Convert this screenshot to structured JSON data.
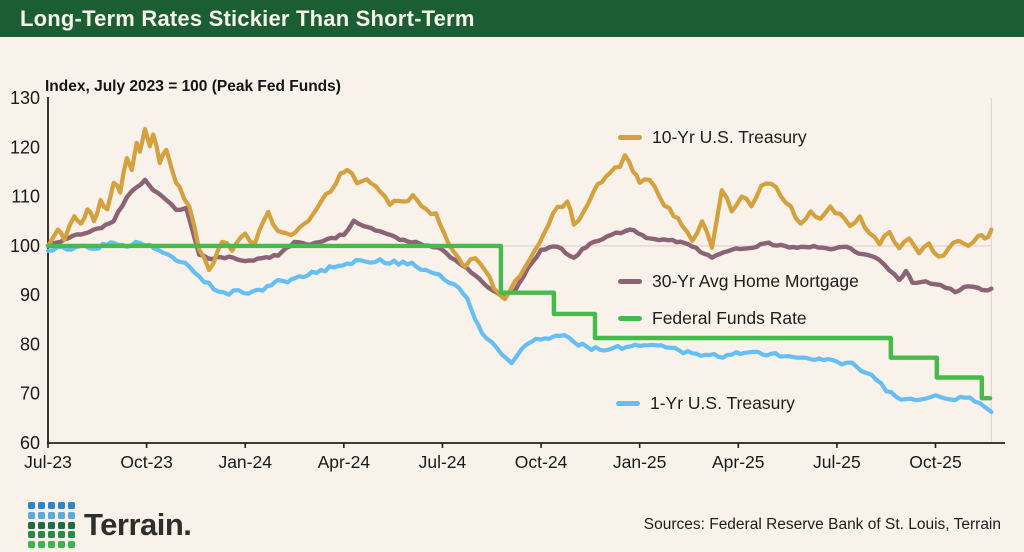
{
  "header": {
    "title": "Long-Term Rates Stickier Than Short-Term"
  },
  "chart_data": {
    "type": "line",
    "title": "Long-Term Rates Stickier Than Short-Term",
    "axis_title": "Index, July 2023 = 100 (Peak Fed Funds)",
    "x_unit": "months since Jul-2023",
    "xlim": [
      0,
      28.7
    ],
    "ylim": [
      60,
      130
    ],
    "grid_y": [
      100
    ],
    "y_ticks": [
      130,
      120,
      110,
      100,
      90,
      80,
      70,
      60
    ],
    "x_ticks": [
      {
        "m": 0,
        "label": "Jul-23"
      },
      {
        "m": 3,
        "label": "Oct-23"
      },
      {
        "m": 6,
        "label": "Jan-24"
      },
      {
        "m": 9,
        "label": "Apr-24"
      },
      {
        "m": 12,
        "label": "Jul-24"
      },
      {
        "m": 15,
        "label": "Oct-24"
      },
      {
        "m": 18,
        "label": "Jan-25"
      },
      {
        "m": 21,
        "label": "Apr-25"
      },
      {
        "m": 24,
        "label": "Jul-25"
      },
      {
        "m": 27,
        "label": "Oct-25"
      }
    ],
    "legend_position": "inline-annotations",
    "series": [
      {
        "name": "10-Yr U.S. Treasury",
        "color": "#D5A03E",
        "points": [
          [
            0,
            100
          ],
          [
            0.3,
            103.3
          ],
          [
            0.5,
            101.2
          ],
          [
            0.8,
            106
          ],
          [
            1,
            104.5
          ],
          [
            1.2,
            107.4
          ],
          [
            1.4,
            105
          ],
          [
            1.6,
            109.3
          ],
          [
            1.8,
            107.4
          ],
          [
            2,
            112.8
          ],
          [
            2.2,
            110.8
          ],
          [
            2.4,
            117.8
          ],
          [
            2.55,
            115.4
          ],
          [
            2.7,
            120.9
          ],
          [
            2.8,
            119.1
          ],
          [
            2.95,
            123.7
          ],
          [
            3.1,
            120.2
          ],
          [
            3.2,
            122.6
          ],
          [
            3.4,
            116.8
          ],
          [
            3.6,
            119.5
          ],
          [
            3.8,
            114.8
          ],
          [
            4,
            112
          ],
          [
            4.3,
            108
          ],
          [
            4.6,
            99.2
          ],
          [
            4.9,
            95.1
          ],
          [
            5.3,
            100.8
          ],
          [
            5.6,
            99
          ],
          [
            6,
            102.5
          ],
          [
            6.3,
            100.5
          ],
          [
            6.7,
            106.9
          ],
          [
            7,
            103
          ],
          [
            7.4,
            102.2
          ],
          [
            7.8,
            104.5
          ],
          [
            8.3,
            108.9
          ],
          [
            8.6,
            111
          ],
          [
            8.9,
            114.7
          ],
          [
            9.1,
            115.4
          ],
          [
            9.4,
            112.7
          ],
          [
            9.7,
            113.5
          ],
          [
            10.1,
            111
          ],
          [
            10.4,
            108.3
          ],
          [
            10.8,
            109
          ],
          [
            11.1,
            110.3
          ],
          [
            11.5,
            107.5
          ],
          [
            11.8,
            106.6
          ],
          [
            12.2,
            100.2
          ],
          [
            12.5,
            97.5
          ],
          [
            12.7,
            95.8
          ],
          [
            13,
            97.5
          ],
          [
            13.3,
            95
          ],
          [
            13.7,
            90.5
          ],
          [
            13.9,
            89.2
          ],
          [
            14.2,
            92.8
          ],
          [
            14.5,
            95.5
          ],
          [
            14.8,
            99
          ],
          [
            15.1,
            102.6
          ],
          [
            15.5,
            107.9
          ],
          [
            15.8,
            109
          ],
          [
            16,
            104.3
          ],
          [
            16.3,
            107
          ],
          [
            16.6,
            111
          ],
          [
            17.1,
            114.8
          ],
          [
            17.4,
            116
          ],
          [
            17.55,
            118.4
          ],
          [
            17.8,
            115
          ],
          [
            18,
            112.8
          ],
          [
            18.3,
            113.4
          ],
          [
            18.6,
            110
          ],
          [
            18.9,
            107.7
          ],
          [
            19.3,
            104
          ],
          [
            19.6,
            101
          ],
          [
            19.9,
            105
          ],
          [
            20.2,
            99.6
          ],
          [
            20.5,
            111.3
          ],
          [
            20.8,
            107
          ],
          [
            21.1,
            110
          ],
          [
            21.4,
            108
          ],
          [
            21.7,
            112.2
          ],
          [
            22,
            112.6
          ],
          [
            22.3,
            110
          ],
          [
            22.6,
            108
          ],
          [
            22.9,
            104.5
          ],
          [
            23.2,
            107
          ],
          [
            23.5,
            105.5
          ],
          [
            23.8,
            108
          ],
          [
            24.1,
            106.5
          ],
          [
            24.4,
            104
          ],
          [
            24.7,
            106
          ],
          [
            25,
            102.5
          ],
          [
            25.3,
            100.3
          ],
          [
            25.6,
            102.8
          ],
          [
            25.9,
            99.5
          ],
          [
            26.2,
            101.5
          ],
          [
            26.5,
            98.5
          ],
          [
            26.8,
            100.5
          ],
          [
            27.1,
            97.8
          ],
          [
            27.4,
            99.5
          ],
          [
            27.7,
            101
          ],
          [
            28,
            100
          ],
          [
            28.3,
            102
          ],
          [
            28.5,
            101.5
          ],
          [
            28.7,
            103.3
          ]
        ]
      },
      {
        "name": "30-Yr Avg Home Mortgage",
        "color": "#8B6375",
        "points": [
          [
            0,
            100
          ],
          [
            0.5,
            101.3
          ],
          [
            1,
            102.3
          ],
          [
            1.5,
            103.5
          ],
          [
            2,
            105
          ],
          [
            2.4,
            109.9
          ],
          [
            2.7,
            111.9
          ],
          [
            2.95,
            113.4
          ],
          [
            3.2,
            111.3
          ],
          [
            3.6,
            109.3
          ],
          [
            3.9,
            107.3
          ],
          [
            4.2,
            107.7
          ],
          [
            4.6,
            98.2
          ],
          [
            5,
            97.3
          ],
          [
            5.5,
            97.8
          ],
          [
            6,
            96.9
          ],
          [
            6.5,
            97.5
          ],
          [
            7,
            98
          ],
          [
            7.5,
            100.8
          ],
          [
            8,
            100.3
          ],
          [
            8.5,
            101.4
          ],
          [
            9,
            102.2
          ],
          [
            9.3,
            105.1
          ],
          [
            9.6,
            104
          ],
          [
            10.2,
            102.7
          ],
          [
            10.7,
            101.2
          ],
          [
            11.3,
            100.5
          ],
          [
            12,
            99.2
          ],
          [
            12.5,
            96.5
          ],
          [
            13,
            94
          ],
          [
            13.4,
            91.5
          ],
          [
            13.8,
            89.8
          ],
          [
            14.2,
            90.8
          ],
          [
            14.6,
            95.5
          ],
          [
            15,
            99.2
          ],
          [
            15.5,
            99.8
          ],
          [
            16,
            97.6
          ],
          [
            16.5,
            100.5
          ],
          [
            17,
            101.9
          ],
          [
            17.7,
            103.3
          ],
          [
            18.2,
            101.6
          ],
          [
            19,
            101.2
          ],
          [
            19.6,
            99.8
          ],
          [
            20.2,
            97.6
          ],
          [
            20.8,
            99.2
          ],
          [
            21.3,
            99.5
          ],
          [
            21.8,
            100.5
          ],
          [
            22.3,
            100.2
          ],
          [
            22.8,
            99.6
          ],
          [
            23.3,
            100
          ],
          [
            23.8,
            99.3
          ],
          [
            24.3,
            99.8
          ],
          [
            24.8,
            98.3
          ],
          [
            25.3,
            97.1
          ],
          [
            25.6,
            95
          ],
          [
            25.9,
            93.1
          ],
          [
            26.1,
            94.9
          ],
          [
            26.3,
            92.5
          ],
          [
            26.7,
            92.8
          ],
          [
            27,
            92.2
          ],
          [
            27.3,
            91.5
          ],
          [
            27.6,
            90.6
          ],
          [
            28,
            91.8
          ],
          [
            28.3,
            91.5
          ],
          [
            28.5,
            91
          ],
          [
            28.7,
            91.3
          ]
        ]
      },
      {
        "name": "Federal Funds Rate",
        "color": "#45BB4C",
        "step": true,
        "points": [
          [
            0,
            100
          ],
          [
            13.78,
            100
          ],
          [
            13.78,
            90.5
          ],
          [
            15.39,
            90.5
          ],
          [
            15.39,
            86.2
          ],
          [
            16.64,
            86.2
          ],
          [
            16.64,
            81.3
          ],
          [
            25.64,
            81.3
          ],
          [
            25.64,
            77.3
          ],
          [
            27.04,
            77.3
          ],
          [
            27.04,
            73.3
          ],
          [
            28.41,
            73.3
          ],
          [
            28.41,
            69.1
          ],
          [
            28.66,
            69.1
          ]
        ]
      },
      {
        "name": "1-Yr U.S. Treasury",
        "color": "#66BFF2",
        "points": [
          [
            0,
            99
          ],
          [
            0.3,
            99.8
          ],
          [
            0.7,
            99.2
          ],
          [
            1,
            100
          ],
          [
            1.4,
            99.4
          ],
          [
            1.8,
            100.2
          ],
          [
            2,
            100.6
          ],
          [
            2.4,
            99.8
          ],
          [
            2.8,
            100.6
          ],
          [
            3.1,
            100.2
          ],
          [
            3.5,
            98.6
          ],
          [
            3.9,
            97
          ],
          [
            4.3,
            95.8
          ],
          [
            4.6,
            93.8
          ],
          [
            4.9,
            92.5
          ],
          [
            5.2,
            90.7
          ],
          [
            5.5,
            90.1
          ],
          [
            5.8,
            91
          ],
          [
            6.1,
            90.3
          ],
          [
            6.4,
            91.1
          ],
          [
            6.8,
            92
          ],
          [
            7,
            93.1
          ],
          [
            7.3,
            92.6
          ],
          [
            7.5,
            93.4
          ],
          [
            7.9,
            94
          ],
          [
            8.3,
            95.1
          ],
          [
            8.7,
            95.6
          ],
          [
            9.1,
            96.4
          ],
          [
            9.5,
            97.1
          ],
          [
            9.8,
            96.6
          ],
          [
            10.1,
            97.3
          ],
          [
            10.4,
            96.4
          ],
          [
            10.8,
            96.8
          ],
          [
            11.2,
            95.8
          ],
          [
            11.5,
            95.1
          ],
          [
            11.9,
            94.2
          ],
          [
            12.2,
            92.5
          ],
          [
            12.5,
            91.5
          ],
          [
            12.75,
            89.4
          ],
          [
            13,
            85
          ],
          [
            13.2,
            82.3
          ],
          [
            13.5,
            80.5
          ],
          [
            13.8,
            78
          ],
          [
            14.1,
            76.2
          ],
          [
            14.4,
            79
          ],
          [
            14.7,
            80.5
          ],
          [
            15,
            81
          ],
          [
            15.35,
            81.5
          ],
          [
            15.7,
            81.9
          ],
          [
            16,
            80.5
          ],
          [
            16.4,
            79.5
          ],
          [
            16.8,
            78.9
          ],
          [
            17.2,
            79.3
          ],
          [
            17.6,
            79.5
          ],
          [
            18,
            79.7
          ],
          [
            18.4,
            79.9
          ],
          [
            18.8,
            79.4
          ],
          [
            19.2,
            78.8
          ],
          [
            19.6,
            78.2
          ],
          [
            20,
            77.9
          ],
          [
            20.4,
            77.5
          ],
          [
            20.8,
            77.9
          ],
          [
            21.2,
            78.3
          ],
          [
            21.6,
            78.5
          ],
          [
            22,
            78.1
          ],
          [
            22.4,
            77.6
          ],
          [
            22.8,
            77.3
          ],
          [
            23.2,
            77
          ],
          [
            23.6,
            76.8
          ],
          [
            24,
            76.5
          ],
          [
            24.3,
            76.3
          ],
          [
            24.6,
            75.5
          ],
          [
            24.9,
            74.2
          ],
          [
            25.2,
            72.8
          ],
          [
            25.5,
            70.5
          ],
          [
            25.8,
            69.4
          ],
          [
            26.1,
            68.9
          ],
          [
            26.4,
            68.7
          ],
          [
            26.7,
            69
          ],
          [
            27,
            69.7
          ],
          [
            27.3,
            69
          ],
          [
            27.6,
            68.7
          ],
          [
            27.9,
            69.2
          ],
          [
            28.2,
            68.4
          ],
          [
            28.5,
            67.3
          ],
          [
            28.7,
            66.3
          ]
        ]
      }
    ]
  },
  "footer": {
    "brand": "Terrain.",
    "sources": "Sources: Federal Reserve Bank of St. Louis, Terrain",
    "logo_rows": [
      "#2E86C7",
      "#5BA9DE",
      "#1D6B47",
      "#27894A",
      "#3CB54D"
    ]
  },
  "colors": {
    "background": "#F8F2EA",
    "header_bg": "#1B5E33",
    "header_text": "#F7F3EB",
    "axis": "#21211F",
    "grid": "#DDD7CD",
    "text": "#1A1A19"
  }
}
